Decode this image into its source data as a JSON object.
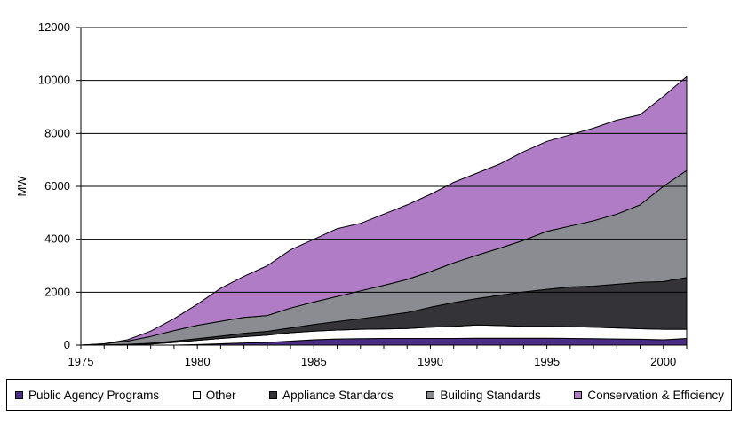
{
  "chart_data": {
    "type": "area",
    "stacked": true,
    "ylabel": "MW",
    "xlabel": "",
    "ylim": [
      0,
      12000
    ],
    "xlim": [
      1975,
      2001
    ],
    "grid": true,
    "legend_position": "bottom",
    "x": [
      1975,
      1976,
      1977,
      1978,
      1979,
      1980,
      1981,
      1982,
      1983,
      1984,
      1985,
      1986,
      1987,
      1988,
      1989,
      1990,
      1991,
      1992,
      1993,
      1994,
      1995,
      1996,
      1997,
      1998,
      1999,
      2000,
      2001
    ],
    "x_ticks": [
      "1975",
      "1980",
      "1985",
      "1990",
      "1995",
      "2000"
    ],
    "y_ticks": [
      "0",
      "2000",
      "4000",
      "6000",
      "8000",
      "10000",
      "12000"
    ],
    "series": [
      {
        "name": "Public Agency Programs",
        "color": "#4b2e83",
        "values": [
          0,
          0,
          0,
          0,
          0,
          20,
          50,
          80,
          100,
          150,
          200,
          230,
          240,
          250,
          250,
          250,
          250,
          260,
          260,
          260,
          260,
          250,
          240,
          230,
          220,
          200,
          250
        ]
      },
      {
        "name": "Other",
        "color": "#ffffff",
        "values": [
          0,
          0,
          10,
          40,
          100,
          160,
          200,
          240,
          280,
          320,
          330,
          340,
          360,
          360,
          380,
          430,
          460,
          500,
          480,
          450,
          450,
          450,
          440,
          420,
          400,
          400,
          350
        ]
      },
      {
        "name": "Appliance Standards",
        "color": "#333338",
        "values": [
          0,
          10,
          20,
          30,
          50,
          60,
          90,
          130,
          140,
          180,
          250,
          320,
          400,
          500,
          600,
          750,
          900,
          1000,
          1150,
          1300,
          1400,
          1500,
          1550,
          1650,
          1750,
          1800,
          1950
        ]
      },
      {
        "name": "Building Standards",
        "color": "#8a8c92",
        "values": [
          0,
          40,
          120,
          260,
          400,
          510,
          560,
          600,
          600,
          750,
          850,
          950,
          1050,
          1150,
          1250,
          1350,
          1500,
          1640,
          1780,
          1950,
          2190,
          2300,
          2470,
          2650,
          2930,
          3600,
          4050
        ]
      },
      {
        "name": "Conservation & Efficiency",
        "color": "#b07cc6",
        "values": [
          0,
          0,
          50,
          200,
          450,
          800,
          1250,
          1550,
          1880,
          2200,
          2370,
          2560,
          2550,
          2690,
          2820,
          2920,
          3040,
          3100,
          3180,
          3350,
          3400,
          3450,
          3500,
          3550,
          3400,
          3400,
          3550
        ]
      }
    ]
  }
}
